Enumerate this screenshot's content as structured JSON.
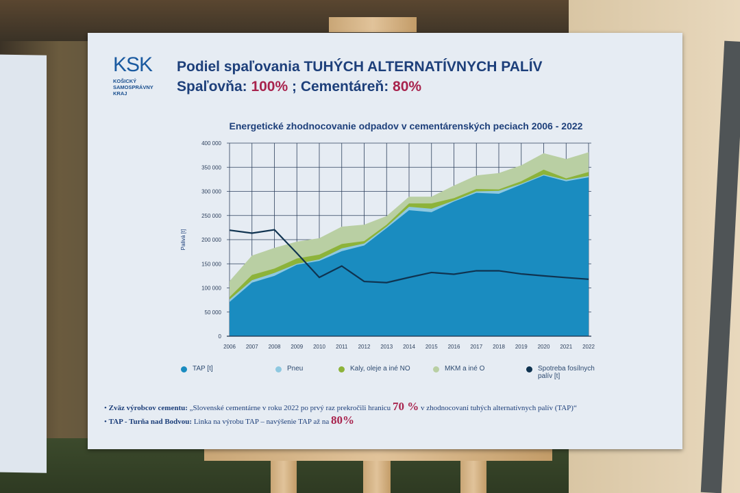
{
  "logo": {
    "mark": "KSK",
    "text": "KOŠICKÝ SAMOSPRÁVNY KRAJ"
  },
  "header": {
    "title_prefix": "Podiel spaľovania ",
    "title_bold": "TUHÝCH ALTERNATÍVNYCH PALÍV",
    "line2_label1": "Spaľovňa: ",
    "line2_value1": "100%",
    "line2_sep": " ; Cementáreň: ",
    "line2_value2": "80%"
  },
  "colors": {
    "tap": "#1a8cc0",
    "pneu": "#8ec8e0",
    "kaly": "#8db33a",
    "mkm": "#b9cfa3",
    "fossil": "#0f3350",
    "accent": "#a8234d",
    "navy": "#1d3f7a"
  },
  "chart_data": {
    "type": "area",
    "stacked": true,
    "title": "Energetické zhodnocovanie odpadov v cementárenských peciach 2006 - 2022",
    "xlabel": "",
    "ylabel": "Palivá [t]",
    "ylim": [
      0,
      400000
    ],
    "yticks": [
      "0",
      "50 000",
      "100 000",
      "150 000",
      "200 000",
      "250 000",
      "300 000",
      "350 000",
      "400 000"
    ],
    "grid": true,
    "legend": "bottom",
    "x": [
      2006,
      2007,
      2008,
      2009,
      2010,
      2011,
      2012,
      2013,
      2014,
      2015,
      2016,
      2017,
      2018,
      2019,
      2020,
      2021,
      2022
    ],
    "series": [
      {
        "name": "TAP [t]",
        "type": "area",
        "values": [
          71000,
          111000,
          125000,
          148000,
          156000,
          176000,
          188000,
          224000,
          261000,
          257000,
          279000,
          297000,
          295000,
          314000,
          333000,
          321000,
          329000
        ]
      },
      {
        "name": "Pneu",
        "type": "area",
        "values": [
          5000,
          5000,
          6000,
          2000,
          3000,
          6000,
          4000,
          3000,
          7000,
          7000,
          2000,
          3000,
          6000,
          2000,
          2000,
          3000,
          3000
        ]
      },
      {
        "name": "Kaly, oleje a iné NO",
        "type": "area",
        "values": [
          5000,
          11000,
          9000,
          11000,
          10000,
          9000,
          5000,
          4000,
          7000,
          11000,
          5000,
          5000,
          3000,
          5000,
          10000,
          3000,
          8000
        ]
      },
      {
        "name": "MKM a iné O",
        "type": "area",
        "values": [
          33000,
          40000,
          43000,
          35000,
          34000,
          36000,
          34000,
          18000,
          14000,
          14000,
          26000,
          28000,
          34000,
          33000,
          34000,
          40000,
          41000
        ]
      },
      {
        "name": "Spotreba fosílnych palív [t]",
        "type": "line",
        "values": [
          219600,
          213500,
          220500,
          172000,
          121800,
          145400,
          113400,
          111000,
          121800,
          132000,
          128400,
          135500,
          135500,
          129000,
          125000,
          121400,
          118000
        ]
      }
    ]
  },
  "notes": [
    {
      "bold": "Zväz výrobcov cementu:",
      "text": " „Slovenské cementárne v roku 2022 po prvý raz prekročili hranicu ",
      "big": "70 %",
      "text2": " v zhodnocovaní tuhých alternatívnych palív (TAP)“"
    },
    {
      "bold": "TAP - Turňa nad Bodvou:",
      "text": " Linka na výrobu TAP – navýšenie TAP až na ",
      "big": "80%",
      "text2": ""
    }
  ]
}
